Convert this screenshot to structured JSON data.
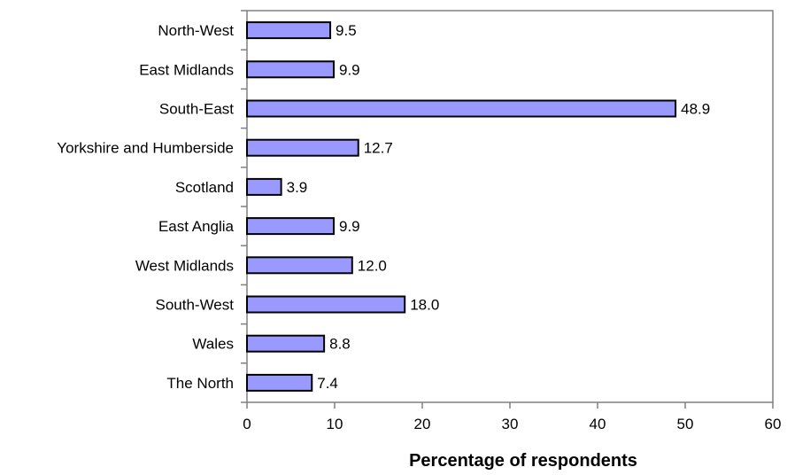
{
  "chart_data": {
    "type": "bar",
    "orientation": "horizontal",
    "categories": [
      "North-West",
      "East Midlands",
      "South-East",
      "Yorkshire and Humberside",
      "Scotland",
      "East Anglia",
      "West Midlands",
      "South-West",
      "Wales",
      "The North"
    ],
    "values": [
      9.5,
      9.9,
      48.9,
      12.7,
      3.9,
      9.9,
      12.0,
      18.0,
      8.8,
      7.4
    ],
    "data_labels": [
      "9.5",
      "9.9",
      "48.9",
      "12.7",
      "3.9",
      "9.9",
      "12.0",
      "18.0",
      "8.8",
      "7.4"
    ],
    "xlabel": "Percentage of respondents",
    "ylabel": "",
    "title": "",
    "xlim": [
      0,
      60
    ],
    "xticks": [
      "0",
      "10",
      "20",
      "30",
      "40",
      "50",
      "60"
    ],
    "grid": false,
    "legend": "none",
    "colors": {
      "bar_fill": "#9999ff",
      "bar_stroke": "#000000",
      "axis": "#808080"
    }
  }
}
